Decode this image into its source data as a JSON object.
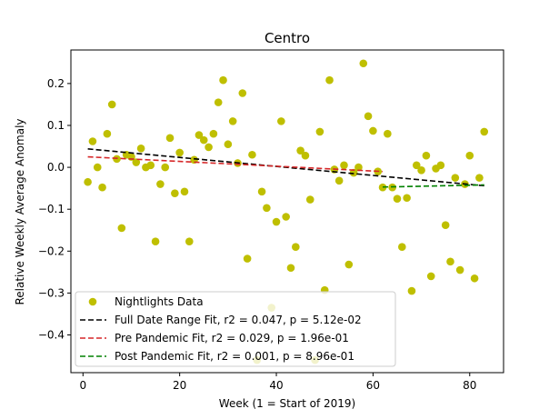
{
  "chart_data": {
    "type": "scatter",
    "title": "Centro",
    "xlabel": "Week (1 = Start of 2019)",
    "ylabel": "Relative Weekly Average Anomaly",
    "xlim": [
      -2.5,
      87
    ],
    "ylim": [
      -0.49,
      0.28
    ],
    "xticks": [
      0,
      20,
      40,
      60,
      80
    ],
    "xtick_labels": [
      "0",
      "20",
      "40",
      "60",
      "80"
    ],
    "yticks": [
      0.2,
      0.1,
      0.0,
      -0.1,
      -0.2,
      -0.3,
      -0.4
    ],
    "ytick_labels": [
      "0.2",
      "0.1",
      "0.0",
      "−0.1",
      "−0.2",
      "−0.3",
      "−0.4"
    ],
    "grid": false,
    "legend_position": "lower left",
    "colors": {
      "points": "#bfbf00",
      "full_fit": "#000000",
      "pre_fit": "#d62728",
      "post_fit": "#008000"
    },
    "series": [
      {
        "name": "Nightlights Data",
        "kind": "scatter",
        "x": [
          1,
          2,
          3,
          4,
          5,
          6,
          7,
          8,
          9,
          10,
          11,
          12,
          13,
          14,
          15,
          16,
          17,
          18,
          19,
          20,
          21,
          22,
          23,
          24,
          25,
          26,
          27,
          28,
          29,
          30,
          31,
          32,
          33,
          34,
          35,
          36,
          37,
          38,
          39,
          40,
          41,
          42,
          43,
          44,
          45,
          46,
          47,
          48,
          49,
          50,
          51,
          52,
          53,
          54,
          55,
          56,
          57,
          58,
          59,
          60,
          61,
          62,
          63,
          64,
          65,
          66,
          67,
          68,
          69,
          70,
          71,
          72,
          73,
          74,
          75,
          76,
          77,
          78,
          79,
          80,
          81,
          82,
          83
        ],
        "y": [
          -0.035,
          0.062,
          0.0,
          -0.048,
          0.08,
          0.15,
          0.02,
          -0.145,
          0.03,
          0.025,
          0.012,
          0.045,
          0.0,
          0.005,
          -0.177,
          -0.04,
          0.0,
          0.07,
          -0.062,
          0.035,
          -0.058,
          -0.177,
          0.018,
          0.077,
          0.065,
          0.048,
          0.08,
          0.155,
          0.208,
          0.055,
          0.11,
          0.01,
          0.177,
          -0.218,
          0.03,
          -0.46,
          -0.058,
          -0.097,
          -0.335,
          -0.13,
          0.11,
          -0.118,
          -0.24,
          -0.19,
          0.04,
          0.028,
          -0.077,
          -0.46,
          0.085,
          -0.293,
          0.208,
          -0.005,
          -0.032,
          0.005,
          -0.232,
          -0.013,
          0.0,
          0.248,
          0.122,
          0.087,
          -0.01,
          -0.048,
          0.08,
          -0.048,
          -0.075,
          -0.19,
          -0.073,
          -0.295,
          0.005,
          -0.007,
          0.028,
          -0.26,
          -0.003,
          0.005,
          -0.138,
          -0.225,
          -0.025,
          -0.245,
          -0.04,
          0.028,
          -0.265,
          -0.025,
          0.085
        ]
      },
      {
        "name": "Full Date Range Fit, r2 = 0.047, p = 5.12e-02",
        "kind": "line",
        "x": [
          1,
          83
        ],
        "y": [
          0.044,
          -0.044
        ]
      },
      {
        "name": "Pre Pandemic Fit, r2 = 0.029, p = 1.96e-01",
        "kind": "line",
        "x": [
          1,
          62
        ],
        "y": [
          0.025,
          -0.01
        ]
      },
      {
        "name": "Post Pandemic Fit, r2 = 0.001, p = 8.96e-01",
        "kind": "line",
        "x": [
          62,
          83
        ],
        "y": [
          -0.047,
          -0.042
        ]
      }
    ]
  }
}
